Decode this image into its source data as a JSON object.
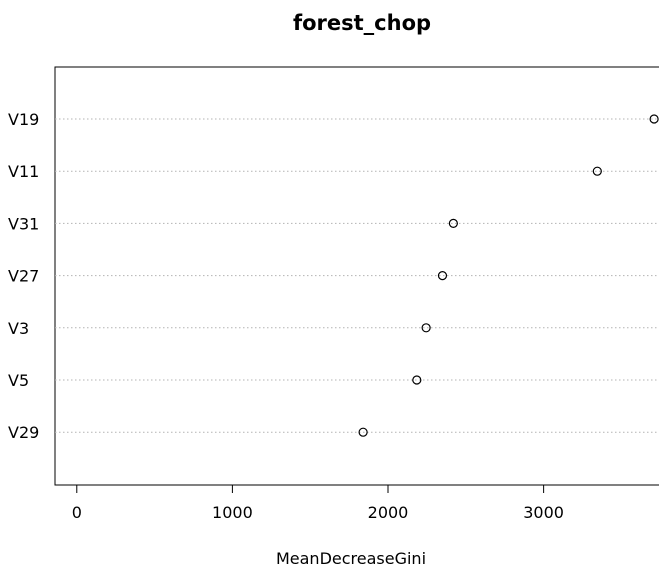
{
  "chart_data": {
    "type": "scatter",
    "title": "forest_chop",
    "xlabel": "MeanDecreaseGini",
    "ylabel": "",
    "categories": [
      "V19",
      "V11",
      "V31",
      "V27",
      "V3",
      "V5",
      "V29"
    ],
    "values": [
      3710,
      3345,
      2420,
      2350,
      2245,
      2185,
      1840
    ],
    "xticks": [
      0,
      1000,
      2000,
      3000
    ],
    "xlim": [
      -140,
      3780
    ],
    "grid": "horizontal dotted",
    "marker": "open circle"
  }
}
